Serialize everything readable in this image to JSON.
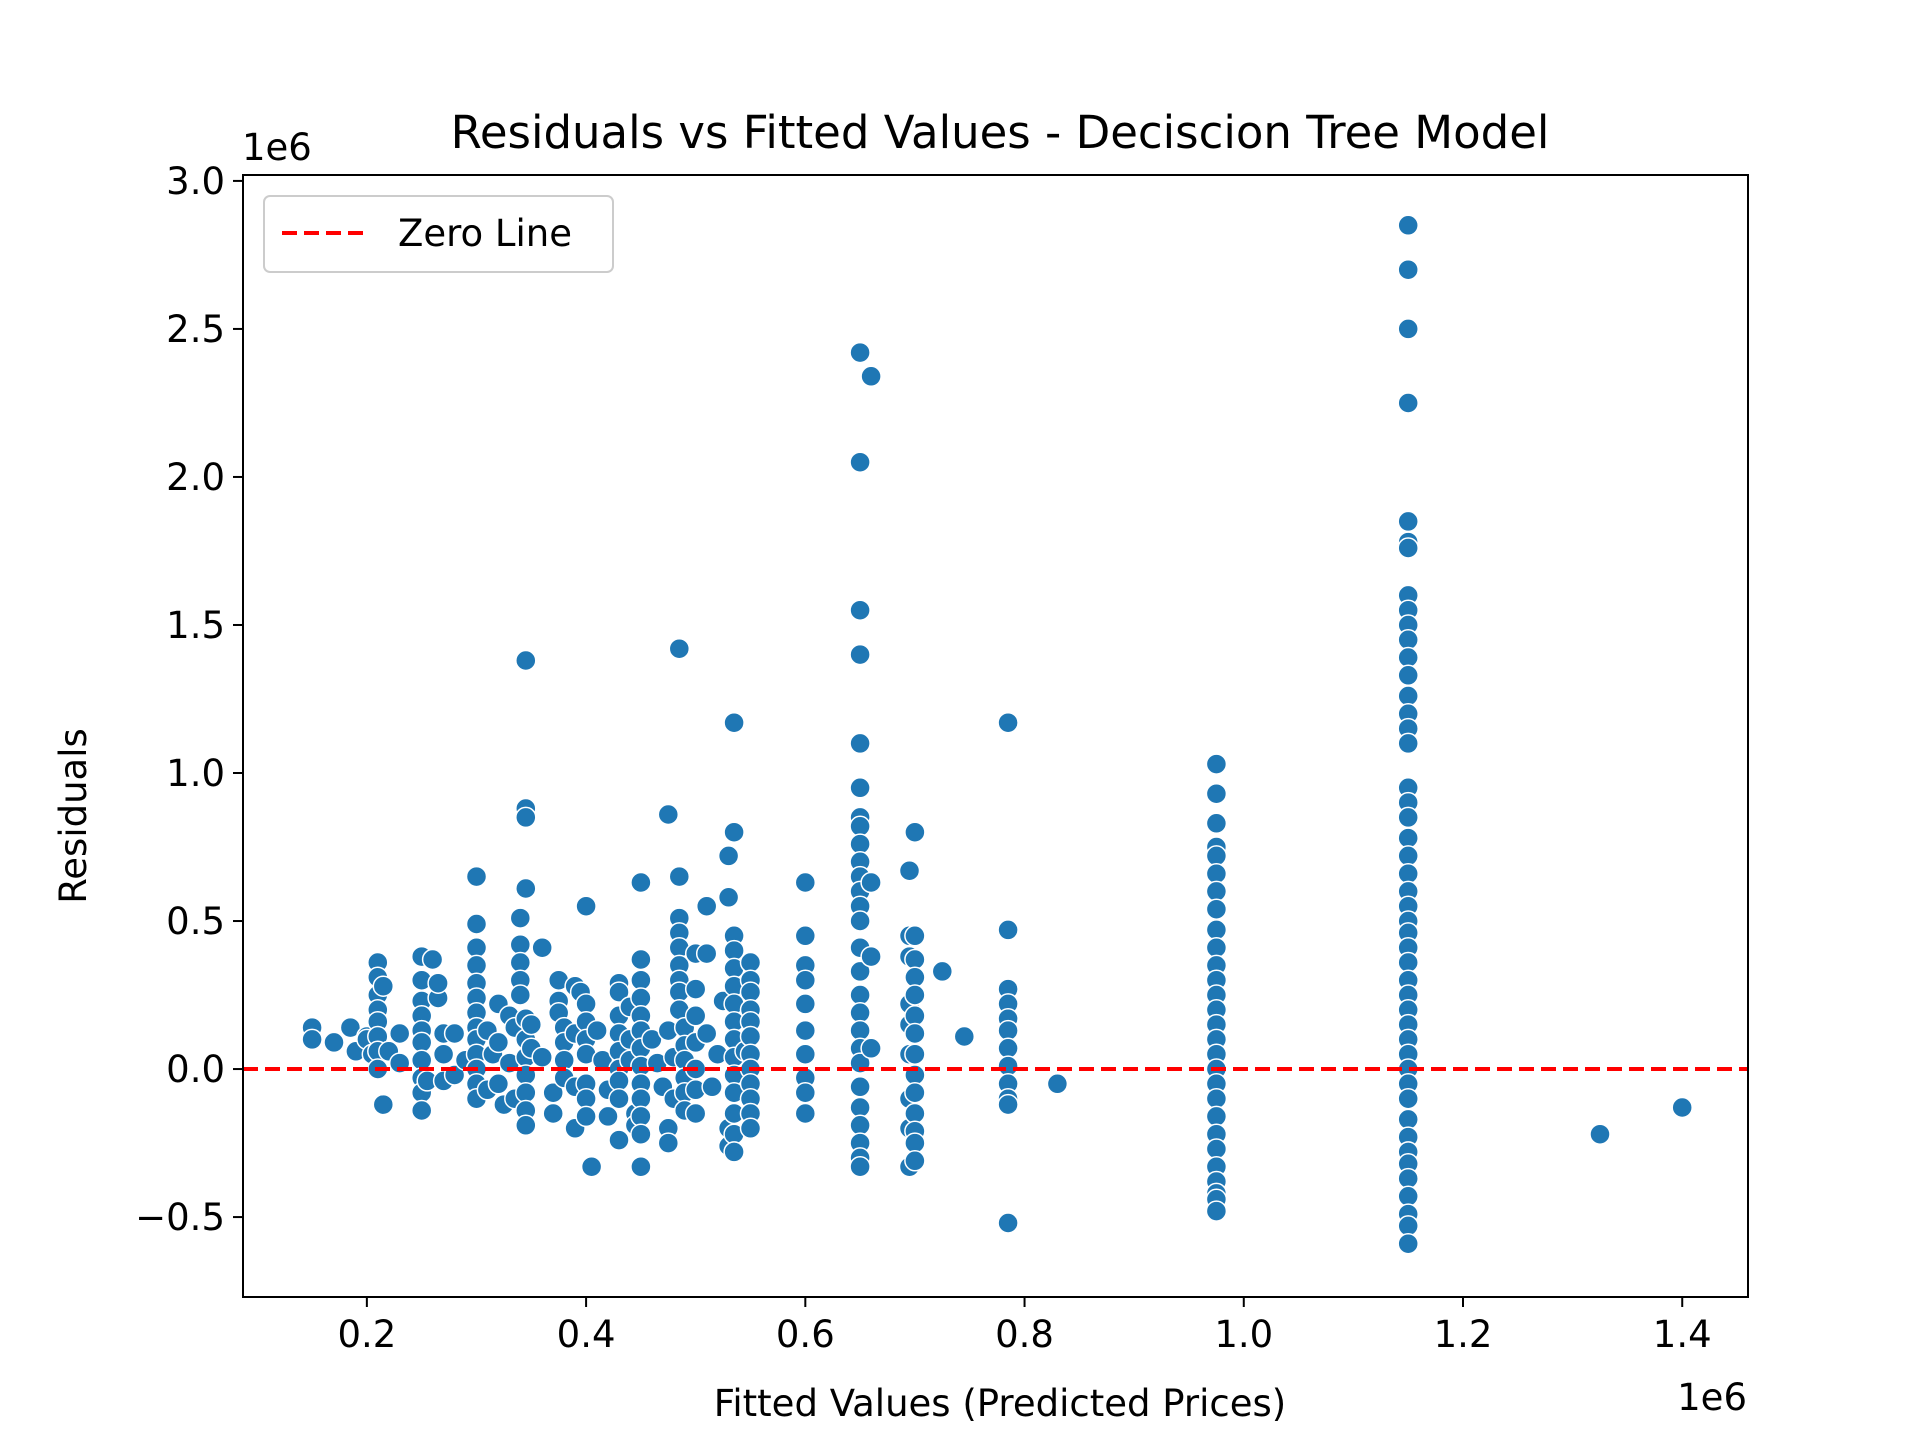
{
  "chart_data": {
    "type": "scatter",
    "title": "Residuals vs Fitted Values - Deciscion Tree Model",
    "xlabel": "Fitted Values (Predicted Prices)",
    "ylabel": "Residuals",
    "x_offset_label": "1e6",
    "y_offset_label": "1e6",
    "xlim": [
      0.087,
      1.46
    ],
    "ylim": [
      -0.77,
      3.02
    ],
    "x_ticks": [
      0.2,
      0.4,
      0.6,
      0.8,
      1.0,
      1.2,
      1.4
    ],
    "x_tick_labels": [
      "0.2",
      "0.4",
      "0.6",
      "0.8",
      "1.0",
      "1.2",
      "1.4"
    ],
    "y_ticks": [
      -0.5,
      0.0,
      0.5,
      1.0,
      1.5,
      2.0,
      2.5,
      3.0
    ],
    "y_tick_labels": [
      "−0.5",
      "0.0",
      "0.5",
      "1.0",
      "1.5",
      "2.0",
      "2.5",
      "3.0"
    ],
    "grid": false,
    "legend": {
      "position": "top-left",
      "entries": [
        {
          "label": "Zero Line",
          "color": "#ff0000",
          "style": "dashed"
        }
      ]
    },
    "reference_line": {
      "y": 0,
      "color": "#ff0000",
      "style": "dashed"
    },
    "point_color": "#1f77b4",
    "points": [
      [
        0.15,
        0.14
      ],
      [
        0.15,
        0.1
      ],
      [
        0.17,
        0.09
      ],
      [
        0.185,
        0.14
      ],
      [
        0.19,
        0.06
      ],
      [
        0.2,
        0.11
      ],
      [
        0.2,
        0.1
      ],
      [
        0.205,
        0.05
      ],
      [
        0.21,
        0.36
      ],
      [
        0.21,
        0.31
      ],
      [
        0.21,
        0.25
      ],
      [
        0.21,
        0.2
      ],
      [
        0.21,
        0.16
      ],
      [
        0.21,
        0.11
      ],
      [
        0.21,
        0.06
      ],
      [
        0.21,
        0.0
      ],
      [
        0.215,
        -0.12
      ],
      [
        0.215,
        0.28
      ],
      [
        0.22,
        0.06
      ],
      [
        0.23,
        0.12
      ],
      [
        0.23,
        0.02
      ],
      [
        0.25,
        0.38
      ],
      [
        0.25,
        0.3
      ],
      [
        0.25,
        0.23
      ],
      [
        0.25,
        0.18
      ],
      [
        0.25,
        0.13
      ],
      [
        0.25,
        0.09
      ],
      [
        0.25,
        0.03
      ],
      [
        0.25,
        -0.03
      ],
      [
        0.25,
        -0.08
      ],
      [
        0.25,
        -0.14
      ],
      [
        0.255,
        -0.04
      ],
      [
        0.26,
        0.37
      ],
      [
        0.265,
        0.24
      ],
      [
        0.265,
        0.29
      ],
      [
        0.27,
        0.12
      ],
      [
        0.27,
        0.05
      ],
      [
        0.27,
        -0.04
      ],
      [
        0.28,
        -0.02
      ],
      [
        0.28,
        0.12
      ],
      [
        0.29,
        0.03
      ],
      [
        0.3,
        0.65
      ],
      [
        0.3,
        0.49
      ],
      [
        0.3,
        0.41
      ],
      [
        0.3,
        0.35
      ],
      [
        0.3,
        0.29
      ],
      [
        0.3,
        0.24
      ],
      [
        0.3,
        0.19
      ],
      [
        0.3,
        0.14
      ],
      [
        0.3,
        0.1
      ],
      [
        0.3,
        0.05
      ],
      [
        0.3,
        0.0
      ],
      [
        0.3,
        -0.05
      ],
      [
        0.3,
        -0.1
      ],
      [
        0.31,
        0.13
      ],
      [
        0.31,
        -0.07
      ],
      [
        0.315,
        0.05
      ],
      [
        0.32,
        0.22
      ],
      [
        0.32,
        0.09
      ],
      [
        0.32,
        -0.05
      ],
      [
        0.325,
        -0.12
      ],
      [
        0.33,
        0.18
      ],
      [
        0.33,
        0.02
      ],
      [
        0.335,
        0.14
      ],
      [
        0.335,
        -0.1
      ],
      [
        0.345,
        1.38
      ],
      [
        0.345,
        0.88
      ],
      [
        0.345,
        0.85
      ],
      [
        0.345,
        0.61
      ],
      [
        0.34,
        0.51
      ],
      [
        0.34,
        0.42
      ],
      [
        0.34,
        0.36
      ],
      [
        0.34,
        0.3
      ],
      [
        0.34,
        0.25
      ],
      [
        0.345,
        0.17
      ],
      [
        0.345,
        0.1
      ],
      [
        0.345,
        0.04
      ],
      [
        0.345,
        -0.02
      ],
      [
        0.345,
        -0.08
      ],
      [
        0.345,
        -0.14
      ],
      [
        0.345,
        -0.19
      ],
      [
        0.35,
        0.15
      ],
      [
        0.35,
        0.07
      ],
      [
        0.36,
        0.41
      ],
      [
        0.36,
        0.04
      ],
      [
        0.37,
        -0.08
      ],
      [
        0.37,
        -0.15
      ],
      [
        0.375,
        0.3
      ],
      [
        0.375,
        0.23
      ],
      [
        0.375,
        0.19
      ],
      [
        0.38,
        0.14
      ],
      [
        0.38,
        0.09
      ],
      [
        0.38,
        0.03
      ],
      [
        0.38,
        -0.03
      ],
      [
        0.39,
        0.12
      ],
      [
        0.39,
        0.28
      ],
      [
        0.39,
        -0.06
      ],
      [
        0.39,
        -0.2
      ],
      [
        0.395,
        0.26
      ],
      [
        0.4,
        0.55
      ],
      [
        0.4,
        0.22
      ],
      [
        0.4,
        0.16
      ],
      [
        0.4,
        0.1
      ],
      [
        0.4,
        0.05
      ],
      [
        0.4,
        -0.05
      ],
      [
        0.4,
        -0.1
      ],
      [
        0.4,
        -0.16
      ],
      [
        0.405,
        -0.33
      ],
      [
        0.41,
        0.13
      ],
      [
        0.415,
        0.03
      ],
      [
        0.42,
        -0.07
      ],
      [
        0.42,
        -0.16
      ],
      [
        0.43,
        0.29
      ],
      [
        0.43,
        0.26
      ],
      [
        0.43,
        0.18
      ],
      [
        0.43,
        0.12
      ],
      [
        0.43,
        0.06
      ],
      [
        0.43,
        0.0
      ],
      [
        0.43,
        -0.04
      ],
      [
        0.43,
        -0.1
      ],
      [
        0.43,
        -0.24
      ],
      [
        0.44,
        0.21
      ],
      [
        0.44,
        0.1
      ],
      [
        0.44,
        0.03
      ],
      [
        0.445,
        -0.15
      ],
      [
        0.445,
        -0.19
      ],
      [
        0.45,
        0.63
      ],
      [
        0.45,
        0.37
      ],
      [
        0.45,
        0.3
      ],
      [
        0.45,
        0.24
      ],
      [
        0.45,
        0.18
      ],
      [
        0.45,
        0.13
      ],
      [
        0.45,
        0.07
      ],
      [
        0.45,
        0.01
      ],
      [
        0.45,
        -0.05
      ],
      [
        0.45,
        -0.1
      ],
      [
        0.45,
        -0.16
      ],
      [
        0.45,
        -0.22
      ],
      [
        0.45,
        -0.33
      ],
      [
        0.46,
        0.1
      ],
      [
        0.465,
        0.02
      ],
      [
        0.47,
        -0.06
      ],
      [
        0.475,
        0.86
      ],
      [
        0.475,
        0.13
      ],
      [
        0.475,
        -0.2
      ],
      [
        0.475,
        -0.25
      ],
      [
        0.48,
        0.04
      ],
      [
        0.48,
        -0.1
      ],
      [
        0.485,
        1.42
      ],
      [
        0.485,
        0.65
      ],
      [
        0.485,
        0.51
      ],
      [
        0.485,
        0.46
      ],
      [
        0.485,
        0.41
      ],
      [
        0.485,
        0.35
      ],
      [
        0.485,
        0.3
      ],
      [
        0.485,
        0.26
      ],
      [
        0.485,
        0.2
      ],
      [
        0.49,
        0.14
      ],
      [
        0.49,
        0.08
      ],
      [
        0.49,
        0.03
      ],
      [
        0.49,
        -0.03
      ],
      [
        0.49,
        -0.08
      ],
      [
        0.49,
        -0.14
      ],
      [
        0.5,
        0.39
      ],
      [
        0.5,
        0.27
      ],
      [
        0.5,
        0.18
      ],
      [
        0.5,
        0.09
      ],
      [
        0.5,
        0.0
      ],
      [
        0.5,
        -0.07
      ],
      [
        0.5,
        -0.15
      ],
      [
        0.51,
        0.55
      ],
      [
        0.51,
        0.39
      ],
      [
        0.51,
        0.12
      ],
      [
        0.515,
        -0.06
      ],
      [
        0.52,
        0.05
      ],
      [
        0.525,
        0.23
      ],
      [
        0.53,
        0.72
      ],
      [
        0.53,
        0.58
      ],
      [
        0.53,
        -0.2
      ],
      [
        0.53,
        -0.26
      ],
      [
        0.535,
        1.17
      ],
      [
        0.535,
        0.8
      ],
      [
        0.535,
        0.45
      ],
      [
        0.535,
        0.4
      ],
      [
        0.535,
        0.34
      ],
      [
        0.535,
        0.28
      ],
      [
        0.535,
        0.22
      ],
      [
        0.535,
        0.16
      ],
      [
        0.535,
        0.1
      ],
      [
        0.535,
        0.04
      ],
      [
        0.535,
        -0.02
      ],
      [
        0.535,
        -0.08
      ],
      [
        0.535,
        -0.15
      ],
      [
        0.535,
        -0.22
      ],
      [
        0.535,
        -0.28
      ],
      [
        0.545,
        0.06
      ],
      [
        0.55,
        0.36
      ],
      [
        0.55,
        0.3
      ],
      [
        0.55,
        0.26
      ],
      [
        0.55,
        0.2
      ],
      [
        0.55,
        0.16
      ],
      [
        0.55,
        0.11
      ],
      [
        0.55,
        0.05
      ],
      [
        0.55,
        0.0
      ],
      [
        0.55,
        -0.05
      ],
      [
        0.55,
        -0.1
      ],
      [
        0.55,
        -0.15
      ],
      [
        0.55,
        -0.2
      ],
      [
        0.6,
        0.63
      ],
      [
        0.6,
        0.45
      ],
      [
        0.6,
        0.35
      ],
      [
        0.6,
        0.3
      ],
      [
        0.6,
        0.22
      ],
      [
        0.6,
        0.13
      ],
      [
        0.6,
        0.05
      ],
      [
        0.6,
        -0.03
      ],
      [
        0.6,
        -0.08
      ],
      [
        0.6,
        -0.15
      ],
      [
        0.65,
        2.42
      ],
      [
        0.65,
        2.05
      ],
      [
        0.65,
        1.55
      ],
      [
        0.65,
        1.4
      ],
      [
        0.65,
        1.1
      ],
      [
        0.65,
        0.95
      ],
      [
        0.65,
        0.85
      ],
      [
        0.65,
        0.82
      ],
      [
        0.65,
        0.76
      ],
      [
        0.65,
        0.7
      ],
      [
        0.65,
        0.65
      ],
      [
        0.65,
        0.6
      ],
      [
        0.65,
        0.55
      ],
      [
        0.65,
        0.5
      ],
      [
        0.65,
        0.41
      ],
      [
        0.65,
        0.33
      ],
      [
        0.65,
        0.25
      ],
      [
        0.65,
        0.19
      ],
      [
        0.65,
        0.13
      ],
      [
        0.65,
        0.07
      ],
      [
        0.65,
        0.02
      ],
      [
        0.65,
        -0.06
      ],
      [
        0.65,
        -0.13
      ],
      [
        0.65,
        -0.19
      ],
      [
        0.65,
        -0.25
      ],
      [
        0.65,
        -0.3
      ],
      [
        0.65,
        -0.33
      ],
      [
        0.66,
        2.34
      ],
      [
        0.66,
        0.63
      ],
      [
        0.66,
        0.38
      ],
      [
        0.66,
        0.07
      ],
      [
        0.695,
        0.67
      ],
      [
        0.695,
        0.45
      ],
      [
        0.695,
        0.38
      ],
      [
        0.695,
        0.22
      ],
      [
        0.695,
        0.15
      ],
      [
        0.695,
        0.05
      ],
      [
        0.695,
        -0.1
      ],
      [
        0.695,
        -0.2
      ],
      [
        0.695,
        -0.33
      ],
      [
        0.7,
        0.8
      ],
      [
        0.7,
        0.45
      ],
      [
        0.7,
        0.37
      ],
      [
        0.7,
        0.31
      ],
      [
        0.7,
        0.25
      ],
      [
        0.7,
        0.18
      ],
      [
        0.7,
        0.12
      ],
      [
        0.7,
        0.05
      ],
      [
        0.7,
        -0.02
      ],
      [
        0.7,
        -0.08
      ],
      [
        0.7,
        -0.15
      ],
      [
        0.7,
        -0.21
      ],
      [
        0.7,
        -0.25
      ],
      [
        0.7,
        -0.31
      ],
      [
        0.725,
        0.33
      ],
      [
        0.745,
        0.11
      ],
      [
        0.785,
        1.17
      ],
      [
        0.785,
        0.47
      ],
      [
        0.785,
        0.27
      ],
      [
        0.785,
        0.22
      ],
      [
        0.785,
        0.17
      ],
      [
        0.785,
        0.13
      ],
      [
        0.785,
        0.07
      ],
      [
        0.785,
        0.01
      ],
      [
        0.785,
        -0.05
      ],
      [
        0.785,
        -0.1
      ],
      [
        0.785,
        -0.12
      ],
      [
        0.785,
        -0.52
      ],
      [
        0.83,
        -0.05
      ],
      [
        0.975,
        1.03
      ],
      [
        0.975,
        0.93
      ],
      [
        0.975,
        0.83
      ],
      [
        0.975,
        0.75
      ],
      [
        0.975,
        0.72
      ],
      [
        0.975,
        0.66
      ],
      [
        0.975,
        0.6
      ],
      [
        0.975,
        0.54
      ],
      [
        0.975,
        0.47
      ],
      [
        0.975,
        0.41
      ],
      [
        0.975,
        0.35
      ],
      [
        0.975,
        0.3
      ],
      [
        0.975,
        0.25
      ],
      [
        0.975,
        0.2
      ],
      [
        0.975,
        0.15
      ],
      [
        0.975,
        0.1
      ],
      [
        0.975,
        0.05
      ],
      [
        0.975,
        0.0
      ],
      [
        0.975,
        -0.05
      ],
      [
        0.975,
        -0.1
      ],
      [
        0.975,
        -0.16
      ],
      [
        0.975,
        -0.22
      ],
      [
        0.975,
        -0.27
      ],
      [
        0.975,
        -0.33
      ],
      [
        0.975,
        -0.38
      ],
      [
        0.975,
        -0.42
      ],
      [
        0.975,
        -0.44
      ],
      [
        0.975,
        -0.48
      ],
      [
        1.15,
        2.85
      ],
      [
        1.15,
        2.7
      ],
      [
        1.15,
        2.5
      ],
      [
        1.15,
        2.25
      ],
      [
        1.15,
        1.85
      ],
      [
        1.15,
        1.78
      ],
      [
        1.15,
        1.76
      ],
      [
        1.15,
        1.6
      ],
      [
        1.15,
        1.55
      ],
      [
        1.15,
        1.5
      ],
      [
        1.15,
        1.45
      ],
      [
        1.15,
        1.39
      ],
      [
        1.15,
        1.33
      ],
      [
        1.15,
        1.26
      ],
      [
        1.15,
        1.2
      ],
      [
        1.15,
        1.15
      ],
      [
        1.15,
        1.1
      ],
      [
        1.15,
        0.95
      ],
      [
        1.15,
        0.9
      ],
      [
        1.15,
        0.85
      ],
      [
        1.15,
        0.78
      ],
      [
        1.15,
        0.72
      ],
      [
        1.15,
        0.66
      ],
      [
        1.15,
        0.6
      ],
      [
        1.15,
        0.55
      ],
      [
        1.15,
        0.5
      ],
      [
        1.15,
        0.46
      ],
      [
        1.15,
        0.41
      ],
      [
        1.15,
        0.36
      ],
      [
        1.15,
        0.3
      ],
      [
        1.15,
        0.25
      ],
      [
        1.15,
        0.2
      ],
      [
        1.15,
        0.15
      ],
      [
        1.15,
        0.1
      ],
      [
        1.15,
        0.05
      ],
      [
        1.15,
        0.0
      ],
      [
        1.15,
        -0.05
      ],
      [
        1.15,
        -0.1
      ],
      [
        1.15,
        -0.17
      ],
      [
        1.15,
        -0.23
      ],
      [
        1.15,
        -0.28
      ],
      [
        1.15,
        -0.32
      ],
      [
        1.15,
        -0.37
      ],
      [
        1.15,
        -0.43
      ],
      [
        1.15,
        -0.49
      ],
      [
        1.15,
        -0.53
      ],
      [
        1.15,
        -0.59
      ],
      [
        1.325,
        -0.22
      ],
      [
        1.4,
        -0.13
      ]
    ]
  }
}
